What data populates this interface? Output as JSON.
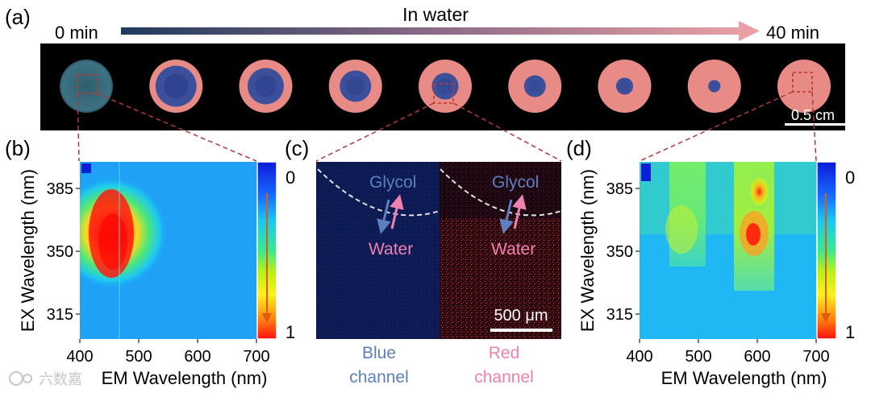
{
  "panels": {
    "a": {
      "letter": "(a)",
      "timeline_label": "In water",
      "start_time": "0 min",
      "end_time": "40 min",
      "scale_bar": "0.5 cm",
      "disc_count": 9
    },
    "b": {
      "letter": "(b)",
      "colorbar_top": "0",
      "colorbar_bottom": "1"
    },
    "c": {
      "letter": "(c)",
      "blue_glycol": "Glycol",
      "blue_water": "Water",
      "red_glycol": "Glycol",
      "red_water": "Water",
      "scale_bar": "500 μm",
      "blue_label_1": "Blue",
      "blue_label_2": "channel",
      "red_label_1": "Red",
      "red_label_2": "channel"
    },
    "d": {
      "letter": "(d)",
      "colorbar_top": "0",
      "colorbar_bottom": "1"
    }
  },
  "watermark": "六数嘉",
  "chart_data": [
    {
      "type": "heatmap",
      "panel": "b",
      "xlabel": "EM Wavelength (nm)",
      "ylabel": "EX Wavelength (nm)",
      "x_ticks": [
        "400",
        "500",
        "600",
        "700"
      ],
      "y_ticks": [
        "385",
        "350",
        "315"
      ],
      "xlim": [
        400,
        700
      ],
      "peaks": [
        {
          "em": 455,
          "ex": 360,
          "intensity": 1.0
        }
      ]
    },
    {
      "type": "heatmap",
      "panel": "d",
      "xlabel": "EM Wavelength (nm)",
      "ylabel": "EX Wavelength (nm)",
      "x_ticks": [
        "400",
        "500",
        "600",
        "700"
      ],
      "y_ticks": [
        "385",
        "350",
        "315"
      ],
      "xlim": [
        400,
        700
      ],
      "peaks": [
        {
          "em": 595,
          "ex": 360,
          "intensity": 1.0
        },
        {
          "em": 475,
          "ex": 365,
          "intensity": 0.5
        }
      ]
    }
  ]
}
